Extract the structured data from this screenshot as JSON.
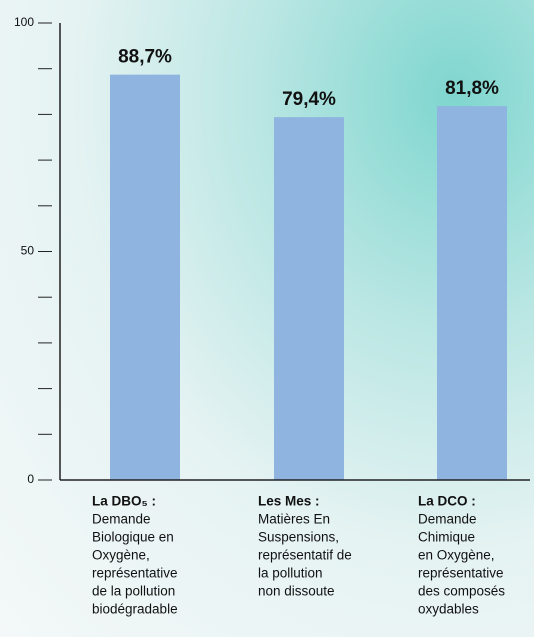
{
  "chart_data": {
    "type": "bar",
    "categories": [
      "La DBO₅ :",
      "Les Mes :",
      "La DCO :"
    ],
    "category_descriptions": [
      [
        "Demande",
        "Biologique en",
        "Oxygène,",
        "représentative",
        "de la pollution",
        "biodégradable"
      ],
      [
        "Matières En",
        "Suspensions,",
        "représentatif de",
        "la pollution",
        "non dissoute"
      ],
      [
        "Demande",
        "Chimique",
        "en Oxygène,",
        "représentative",
        "des composés",
        "oxydables"
      ]
    ],
    "values": [
      88.7,
      79.4,
      81.8
    ],
    "value_labels": [
      "88,7%",
      "79,4%",
      "81,8%"
    ],
    "color": "#8fb4e0",
    "ylim": [
      0,
      100
    ],
    "yticks": [
      0,
      50,
      100
    ],
    "yminorticks": [
      10,
      20,
      30,
      40,
      60,
      70,
      80,
      90
    ]
  }
}
